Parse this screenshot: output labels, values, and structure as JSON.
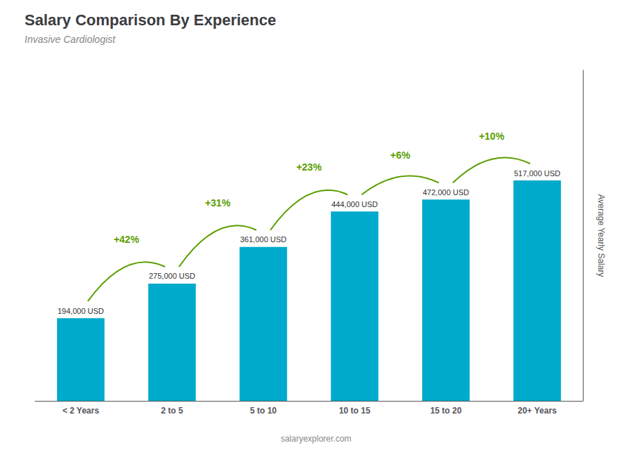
{
  "chart_data": {
    "type": "bar",
    "title": "Salary Comparison By Experience",
    "subtitle": "Invasive Cardiologist",
    "ylabel": "Average Yearly Salary",
    "categories": [
      "< 2 Years",
      "2 to 5",
      "5 to 10",
      "10 to 15",
      "15 to 20",
      "20+ Years"
    ],
    "values": [
      194000,
      275000,
      361000,
      444000,
      472000,
      517000
    ],
    "value_labels": [
      "194,000 USD",
      "275,000 USD",
      "361,000 USD",
      "444,000 USD",
      "472,000 USD",
      "517,000 USD"
    ],
    "data_labels": true,
    "annotations": [
      "+42%",
      "+31%",
      "+23%",
      "+6%",
      "+10%",
      "salaryexplorer.com"
    ],
    "color": "#00aacc",
    "ylim": [
      0,
      775500
    ],
    "tick_labels": "x",
    "grid": false
  }
}
